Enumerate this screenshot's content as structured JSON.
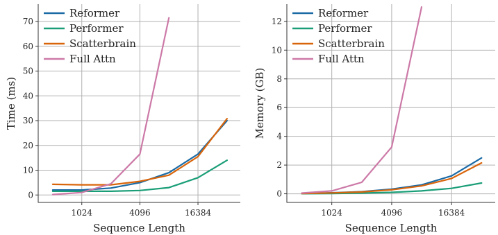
{
  "chart_data": [
    {
      "type": "line",
      "title": "",
      "xlabel": "Sequence Length",
      "ylabel": "Time (ms)",
      "x_scale": "log2",
      "xlim": [
        362,
        45000
      ],
      "ylim": [
        -3,
        77
      ],
      "xticks": [
        1024,
        4096,
        16384
      ],
      "xtick_labels": [
        "1024",
        "4096",
        "16384"
      ],
      "yticks": [
        0,
        10,
        20,
        30,
        40,
        50,
        60,
        70
      ],
      "ytick_labels": [
        "0",
        "10",
        "20",
        "30",
        "40",
        "50",
        "60",
        "70"
      ],
      "grid": true,
      "legend": "top-left",
      "x": [
        512,
        1024,
        2048,
        4096,
        8192,
        16384,
        32768
      ],
      "series": [
        {
          "name": "Reformer",
          "color": "#1a6aa5",
          "values": [
            2.0,
            2.0,
            2.8,
            5.0,
            9.0,
            16.5,
            30.0
          ]
        },
        {
          "name": "Performer",
          "color": "#1a9e77",
          "values": [
            1.5,
            1.5,
            1.5,
            1.8,
            3.0,
            7.0,
            14.0
          ]
        },
        {
          "name": "Scatterbrain",
          "color": "#d9650b",
          "values": [
            4.3,
            4.1,
            4.1,
            5.5,
            8.0,
            15.5,
            30.8
          ]
        },
        {
          "name": "Full Attn",
          "color": "#cc79a7",
          "values": [
            0.2,
            1.0,
            4.5,
            16.5,
            71.5,
            null,
            null
          ]
        }
      ]
    },
    {
      "type": "line",
      "title": "",
      "xlabel": "Sequence Length",
      "ylabel": "Memory (GB)",
      "x_scale": "log2",
      "xlim": [
        362,
        45000
      ],
      "ylim": [
        -0.6,
        13.2
      ],
      "xticks": [
        1024,
        4096,
        16384
      ],
      "xtick_labels": [
        "1024",
        "4096",
        "16384"
      ],
      "yticks": [
        0,
        2,
        4,
        6,
        8,
        10,
        12
      ],
      "ytick_labels": [
        "0",
        "2",
        "4",
        "6",
        "8",
        "10",
        "12"
      ],
      "grid": true,
      "legend": "top-left",
      "x": [
        512,
        1024,
        2048,
        4096,
        8192,
        16384,
        32768
      ],
      "series": [
        {
          "name": "Reformer",
          "color": "#1a6aa5",
          "values": [
            0.02,
            0.07,
            0.15,
            0.32,
            0.62,
            1.25,
            2.5
          ]
        },
        {
          "name": "Performer",
          "color": "#1a9e77",
          "values": [
            0.01,
            0.02,
            0.05,
            0.1,
            0.2,
            0.38,
            0.75
          ]
        },
        {
          "name": "Scatterbrain",
          "color": "#d9650b",
          "values": [
            0.02,
            0.06,
            0.13,
            0.28,
            0.55,
            1.07,
            2.15
          ]
        },
        {
          "name": "Full Attn",
          "color": "#cc79a7",
          "values": [
            0.05,
            0.2,
            0.8,
            3.25,
            13.0,
            null,
            null
          ]
        }
      ]
    }
  ]
}
